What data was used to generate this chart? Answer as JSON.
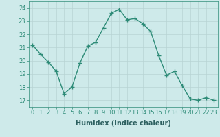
{
  "x": [
    0,
    1,
    2,
    3,
    4,
    5,
    6,
    7,
    8,
    9,
    10,
    11,
    12,
    13,
    14,
    15,
    16,
    17,
    18,
    19,
    20,
    21,
    22,
    23
  ],
  "y": [
    21.2,
    20.5,
    19.9,
    19.2,
    17.5,
    18.0,
    19.8,
    21.1,
    21.4,
    22.5,
    23.6,
    23.9,
    23.1,
    23.2,
    22.8,
    22.2,
    20.4,
    18.9,
    19.2,
    18.1,
    17.1,
    17.0,
    17.2,
    17.0
  ],
  "line_color": "#2d8b77",
  "marker": "+",
  "marker_size": 4,
  "bg_color": "#ceeaea",
  "grid_color": "#b8d4d4",
  "xlabel": "Humidex (Indice chaleur)",
  "ylim": [
    16.5,
    24.5
  ],
  "xlim": [
    -0.5,
    23.5
  ],
  "yticks": [
    17,
    18,
    19,
    20,
    21,
    22,
    23,
    24
  ],
  "xticks": [
    0,
    1,
    2,
    3,
    4,
    5,
    6,
    7,
    8,
    9,
    10,
    11,
    12,
    13,
    14,
    15,
    16,
    17,
    18,
    19,
    20,
    21,
    22,
    23
  ],
  "tick_color": "#2d8b77",
  "label_color": "#2d6060",
  "axis_color": "#2d8b77",
  "font_size_xlabel": 7,
  "font_size_tick": 6,
  "lw": 1.0
}
